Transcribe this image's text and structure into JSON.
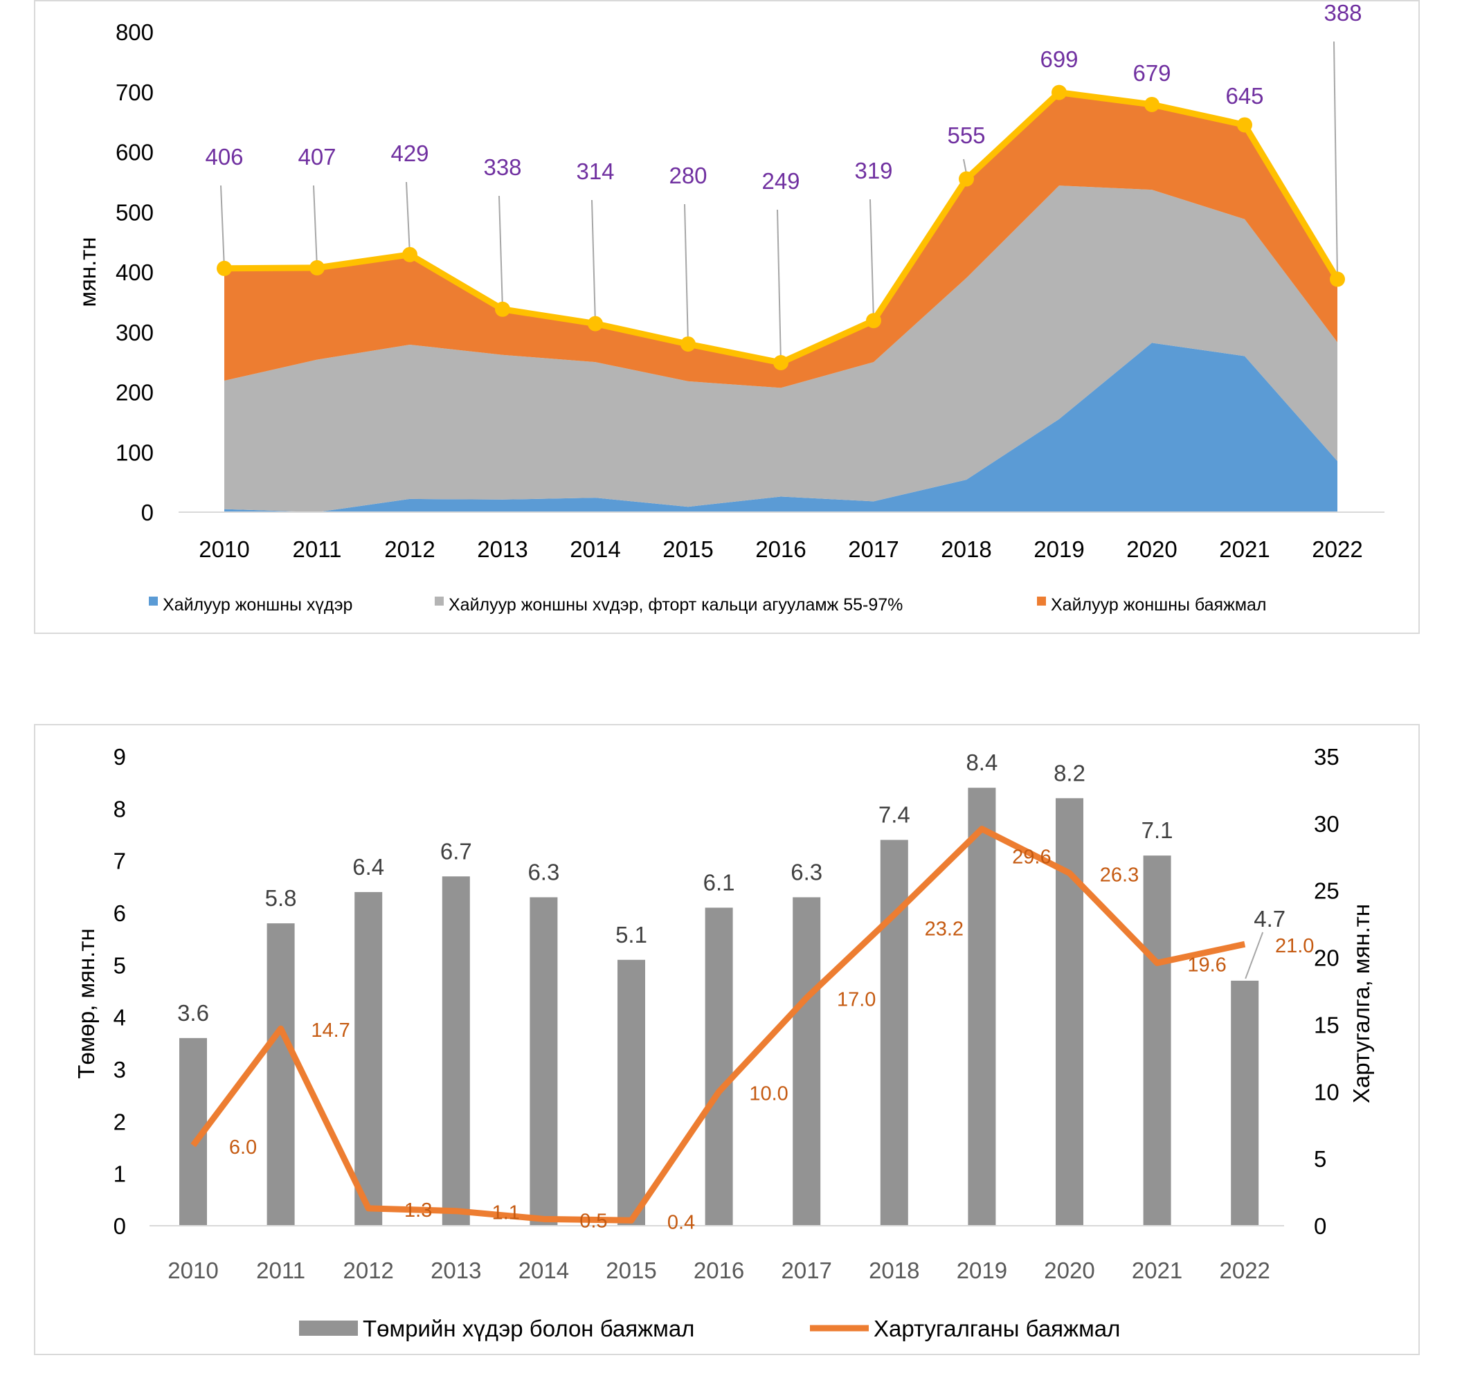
{
  "chart_data": [
    {
      "type": "area",
      "stacked": true,
      "categories": [
        "2010",
        "2011",
        "2012",
        "2013",
        "2014",
        "2015",
        "2016",
        "2017",
        "2018",
        "2019",
        "2020",
        "2021",
        "2022"
      ],
      "ylabel": "мян.тн",
      "ylim": [
        0,
        800
      ],
      "yticks": [
        0,
        100,
        200,
        300,
        400,
        500,
        600,
        700,
        800
      ],
      "grid": false,
      "legend_position": "bottom",
      "series": [
        {
          "name": "Хайлуур жоншны хүдэр",
          "color": "#5b9bd5",
          "values": [
            5,
            0,
            22,
            21,
            24,
            9,
            26,
            18,
            54,
            155,
            282,
            260,
            85
          ]
        },
        {
          "name": "Хайлуур жоншны хvдэр, фторт кальци агууламж 55-97%",
          "color": "#b4b4b4",
          "values": [
            214,
            254,
            257,
            241,
            226,
            209,
            181,
            232,
            336,
            389,
            255,
            228,
            198
          ]
        },
        {
          "name": "Хайлуур жоншны баяжмал",
          "color": "#ed7d31",
          "values": [
            187,
            153,
            150,
            76,
            64,
            62,
            42,
            69,
            165,
            155,
            142,
            157,
            105
          ]
        }
      ],
      "total_line": {
        "color": "#ffc000",
        "label_color": "#7030a0",
        "values": [
          406,
          407,
          429,
          338,
          314,
          280,
          249,
          319,
          555,
          699,
          679,
          645,
          388
        ]
      }
    },
    {
      "type": "bar",
      "categories": [
        "2010",
        "2011",
        "2012",
        "2013",
        "2014",
        "2015",
        "2016",
        "2017",
        "2018",
        "2019",
        "2020",
        "2021",
        "2022"
      ],
      "ylabel": "Төмөр, мян.тн",
      "ylim": [
        0,
        9
      ],
      "yticks": [
        0,
        1,
        2,
        3,
        4,
        5,
        6,
        7,
        8,
        9
      ],
      "y2label": "Хартугалга, мян.тн",
      "y2lim": [
        0,
        35
      ],
      "y2ticks": [
        0,
        5,
        10,
        15,
        20,
        25,
        30,
        35
      ],
      "grid": false,
      "legend_position": "bottom",
      "series": [
        {
          "name": "Төмрийн хүдэр болон баяжмал",
          "type": "bar",
          "axis": "left",
          "color": "#939393",
          "values": [
            3.6,
            5.8,
            6.4,
            6.7,
            6.3,
            5.1,
            6.1,
            6.3,
            7.4,
            8.4,
            8.2,
            7.1,
            4.7
          ]
        },
        {
          "name": "Хартугалганы баяжмал",
          "type": "line",
          "axis": "right",
          "color": "#ed7d31",
          "label_color": "#c55a11",
          "values": [
            6.0,
            14.7,
            1.3,
            1.1,
            0.5,
            0.4,
            10.0,
            17.0,
            23.2,
            29.6,
            26.3,
            19.6,
            21.0
          ]
        }
      ]
    }
  ]
}
